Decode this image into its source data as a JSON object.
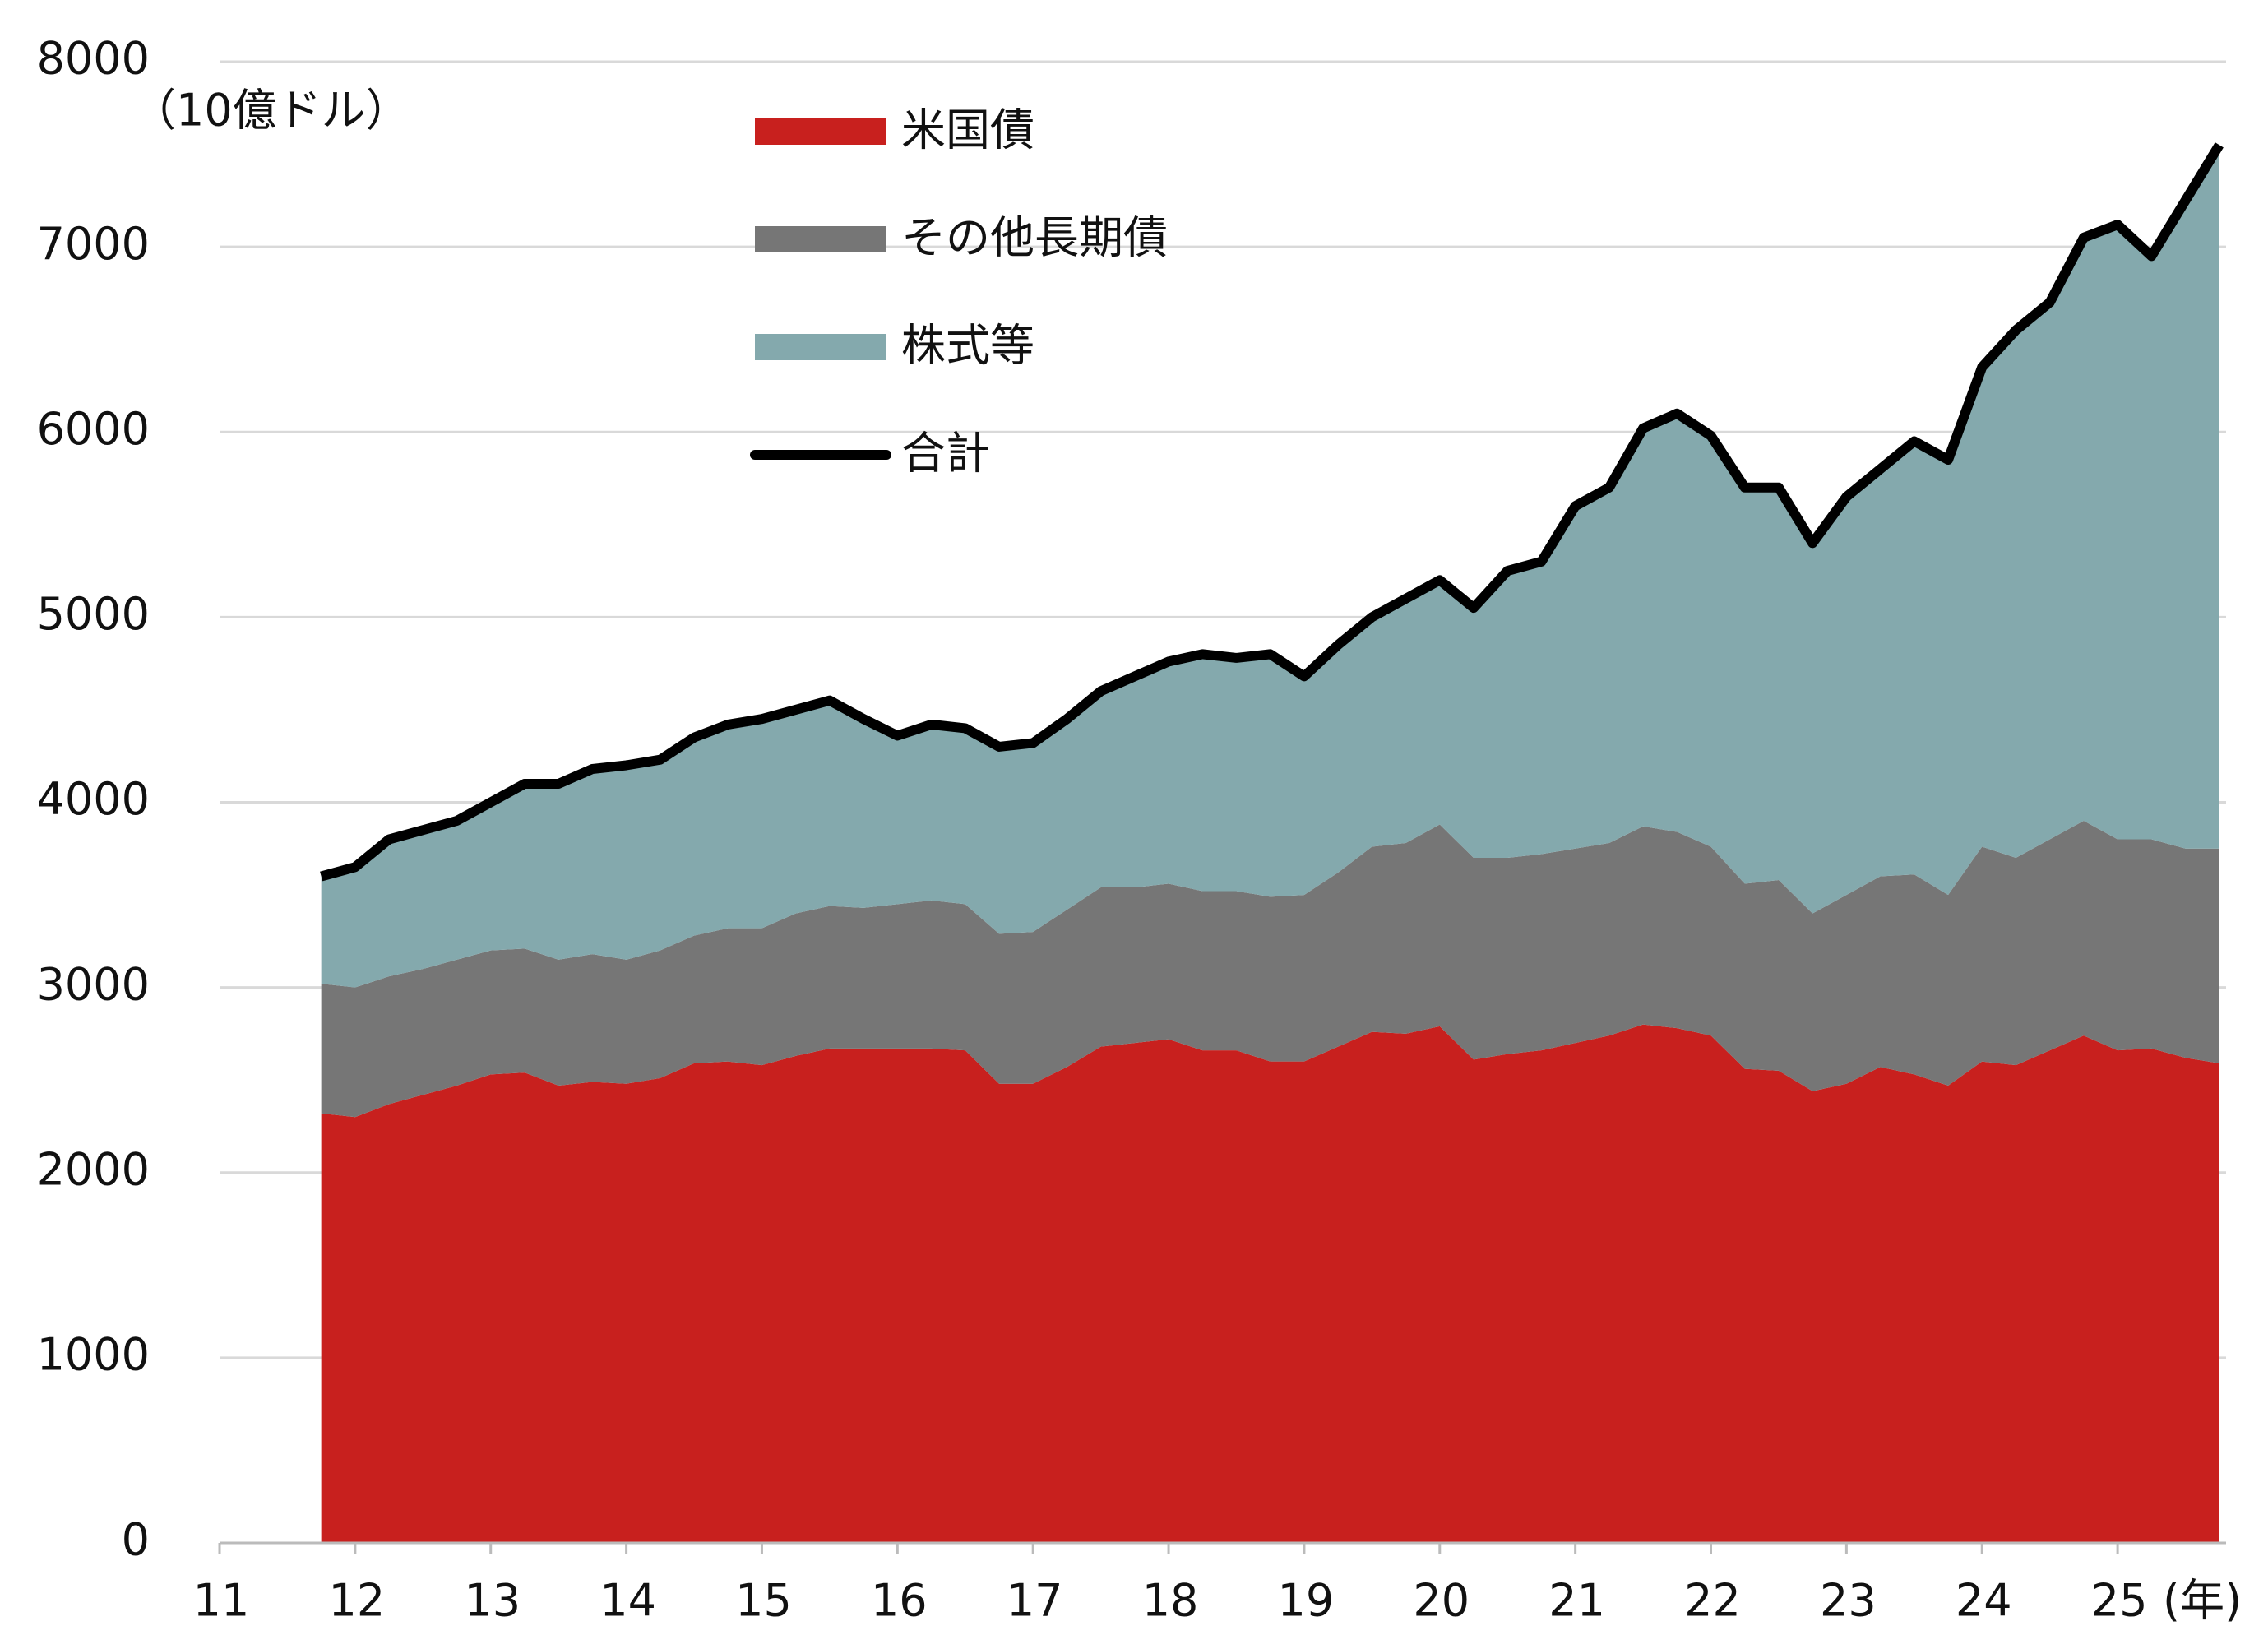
{
  "chart_data": {
    "type": "area",
    "stacked": true,
    "ylabel": "（10億ドル）",
    "xlabel": "(年)",
    "x": [
      11.75,
      12,
      12.25,
      12.5,
      12.75,
      13,
      13.25,
      13.5,
      13.75,
      14,
      14.25,
      14.5,
      14.75,
      15,
      15.25,
      15.5,
      15.75,
      16,
      16.25,
      16.5,
      16.75,
      17,
      17.25,
      17.5,
      17.75,
      18,
      18.25,
      18.5,
      18.75,
      19,
      19.25,
      19.5,
      19.75,
      20,
      20.25,
      20.5,
      20.75,
      21,
      21.25,
      21.5,
      21.75,
      22,
      22.25,
      22.5,
      22.75,
      23,
      23.25,
      23.5,
      23.75,
      24,
      24.25,
      24.5,
      24.75,
      25,
      25.25,
      25.5,
      25.75
    ],
    "series": [
      {
        "name": "米国債",
        "color": "#c8201e",
        "values": [
          2320,
          2300,
          2370,
          2420,
          2470,
          2530,
          2540,
          2470,
          2490,
          2480,
          2510,
          2590,
          2600,
          2580,
          2630,
          2670,
          2670,
          2670,
          2670,
          2660,
          2480,
          2480,
          2570,
          2680,
          2700,
          2720,
          2660,
          2660,
          2600,
          2600,
          2680,
          2760,
          2750,
          2790,
          2610,
          2640,
          2660,
          2700,
          2740,
          2800,
          2780,
          2740,
          2560,
          2550,
          2440,
          2480,
          2570,
          2530,
          2470,
          2600,
          2580,
          2660,
          2740,
          2660,
          2670,
          2620,
          2590
        ]
      },
      {
        "name": "その他長期債",
        "color": "#767676",
        "values": [
          700,
          700,
          690,
          680,
          680,
          670,
          670,
          680,
          690,
          670,
          690,
          690,
          720,
          740,
          770,
          770,
          760,
          780,
          800,
          790,
          810,
          820,
          850,
          860,
          840,
          840,
          860,
          860,
          890,
          900,
          940,
          1000,
          1030,
          1090,
          1090,
          1060,
          1060,
          1050,
          1040,
          1070,
          1060,
          1020,
          1000,
          1030,
          960,
          1020,
          1030,
          1080,
          1030,
          1160,
          1120,
          1140,
          1160,
          1140,
          1130,
          1130,
          1160
        ]
      },
      {
        "name": "株式等",
        "color": "#84a9ad",
        "values": [
          580,
          650,
          740,
          750,
          750,
          800,
          890,
          950,
          1000,
          1050,
          1030,
          1070,
          1100,
          1130,
          1100,
          1110,
          1020,
          910,
          950,
          950,
          1010,
          1020,
          1030,
          1060,
          1140,
          1200,
          1280,
          1260,
          1310,
          1180,
          1230,
          1240,
          1320,
          1320,
          1350,
          1550,
          1580,
          1850,
          1920,
          2150,
          2260,
          2220,
          2140,
          2120,
          2000,
          2150,
          2200,
          2340,
          2350,
          2590,
          2850,
          2900,
          3150,
          3320,
          3150,
          3500,
          3800
        ]
      },
      {
        "name": "合計",
        "color": "#000000",
        "type": "line",
        "values": [
          3600,
          3650,
          3800,
          3850,
          3900,
          4000,
          4100,
          4100,
          4180,
          4200,
          4230,
          4350,
          4420,
          4450,
          4500,
          4550,
          4450,
          4360,
          4420,
          4400,
          4300,
          4320,
          4450,
          4600,
          4680,
          4760,
          4800,
          4780,
          4800,
          4680,
          4850,
          5000,
          5100,
          5200,
          5050,
          5250,
          5300,
          5600,
          5700,
          6020,
          6100,
          5980,
          5700,
          5700,
          5400,
          5650,
          5800,
          5950,
          5850,
          6350,
          6550,
          6700,
          7050,
          7120,
          6950,
          7250,
          7550
        ]
      }
    ],
    "xlim": [
      11,
      25.8
    ],
    "xticks": [
      11,
      12,
      13,
      14,
      15,
      16,
      17,
      18,
      19,
      20,
      21,
      22,
      23,
      24,
      25
    ],
    "ylim": [
      0,
      8000
    ],
    "yticks": [
      0,
      1000,
      2000,
      3000,
      4000,
      5000,
      6000,
      7000,
      8000
    ],
    "grid": true
  }
}
